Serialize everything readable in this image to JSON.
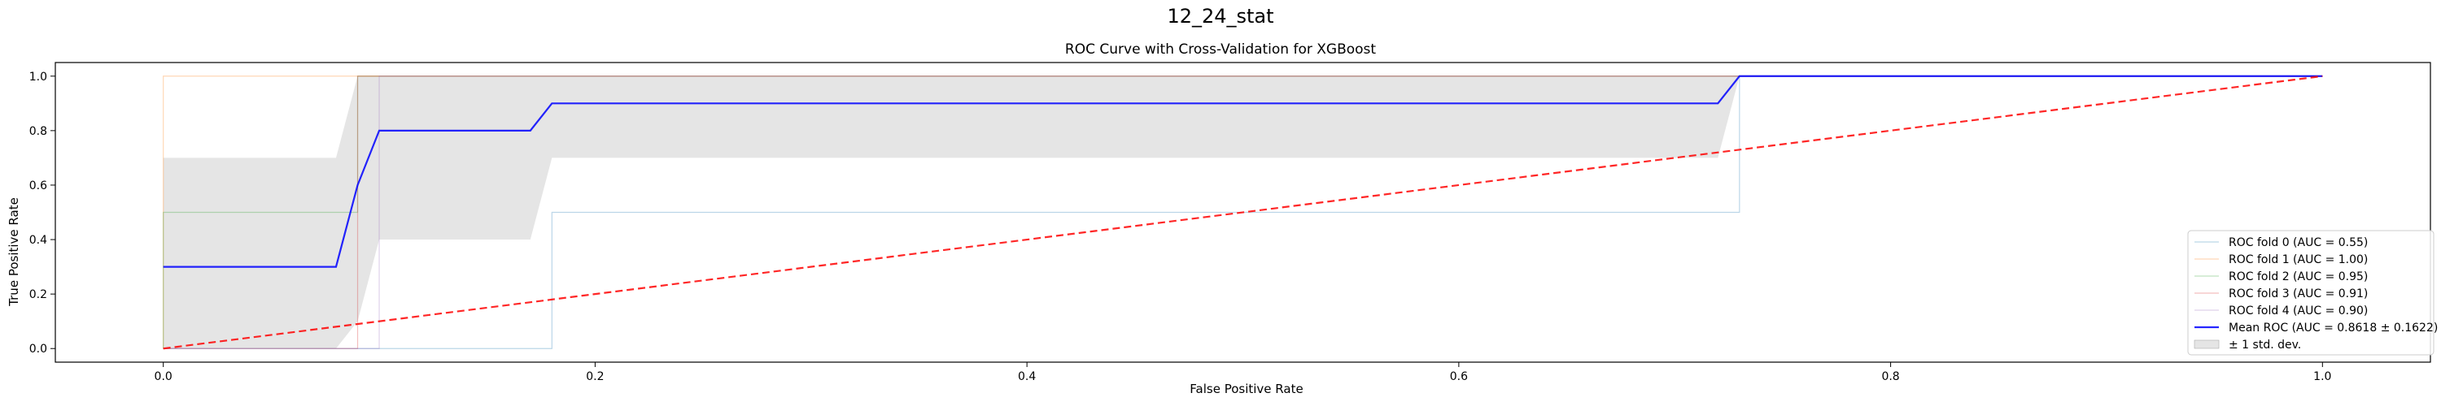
{
  "figure": {
    "suptitle": "12_24_stat"
  },
  "chart_data": {
    "type": "line",
    "title": "ROC Curve with Cross-Validation for XGBoost",
    "xlabel": "False Positive Rate",
    "ylabel": "True Positive Rate",
    "xlim": [
      -0.05,
      1.05
    ],
    "ylim": [
      -0.05,
      1.05
    ],
    "xticks": [
      0.0,
      0.2,
      0.4,
      0.6,
      0.8,
      1.0
    ],
    "yticks": [
      0.0,
      0.2,
      0.4,
      0.6,
      0.8,
      1.0
    ],
    "xtick_labels": [
      "0.0",
      "0.2",
      "0.4",
      "0.6",
      "0.8",
      "1.0"
    ],
    "ytick_labels": [
      "0.0",
      "0.2",
      "0.4",
      "0.6",
      "0.8",
      "1.0"
    ],
    "grid": false,
    "legend_position": "lower right",
    "series": [
      {
        "name": "ROC fold 0 (AUC = 0.55)",
        "color": "#1f77b4",
        "style": "solid-thin",
        "x": [
          0.0,
          0.0,
          0.18,
          0.18,
          0.73,
          0.73,
          1.0
        ],
        "y": [
          0.0,
          0.0,
          0.0,
          0.5,
          0.5,
          1.0,
          1.0
        ]
      },
      {
        "name": "ROC fold 1 (AUC = 1.00)",
        "color": "#ff7f0e",
        "style": "solid-thin",
        "x": [
          0.0,
          0.0,
          1.0
        ],
        "y": [
          0.0,
          1.0,
          1.0
        ]
      },
      {
        "name": "ROC fold 2 (AUC = 0.95)",
        "color": "#2ca02c",
        "style": "solid-thin",
        "x": [
          0.0,
          0.0,
          0.09,
          0.09,
          1.0
        ],
        "y": [
          0.0,
          0.5,
          0.5,
          1.0,
          1.0
        ]
      },
      {
        "name": "ROC fold 3 (AUC = 0.91)",
        "color": "#d62728",
        "style": "solid-thin",
        "x": [
          0.0,
          0.0,
          0.09,
          0.09,
          1.0
        ],
        "y": [
          0.0,
          0.0,
          0.0,
          1.0,
          1.0
        ]
      },
      {
        "name": "ROC fold 4 (AUC = 0.90)",
        "color": "#9467bd",
        "style": "solid-thin",
        "x": [
          0.0,
          0.0,
          0.1,
          0.1,
          1.0
        ],
        "y": [
          0.0,
          0.0,
          0.0,
          1.0,
          1.0
        ]
      },
      {
        "name": "Mean ROC (AUC = 0.8618 ± 0.1622)",
        "color": "#0000ff",
        "style": "solid-bold",
        "x": [
          0.0,
          0.08,
          0.09,
          0.1,
          0.17,
          0.18,
          0.72,
          0.73,
          1.0
        ],
        "y": [
          0.3,
          0.3,
          0.6,
          0.8,
          0.8,
          0.9,
          0.9,
          1.0,
          1.0
        ]
      },
      {
        "name": "",
        "color": "#ff0000",
        "style": "dashed",
        "x": [
          0.0,
          1.0
        ],
        "y": [
          0.0,
          1.0
        ]
      }
    ],
    "band": {
      "name": "± 1 std. dev.",
      "color": "#bdbdbd",
      "x": [
        0.0,
        0.08,
        0.09,
        0.1,
        0.17,
        0.18,
        0.72,
        0.73,
        1.0
      ],
      "lower": [
        0.0,
        0.0,
        0.1,
        0.4,
        0.4,
        0.7,
        0.7,
        1.0,
        1.0
      ],
      "upper": [
        0.7,
        0.7,
        1.0,
        1.0,
        1.0,
        1.0,
        1.0,
        1.0,
        1.0
      ]
    }
  }
}
